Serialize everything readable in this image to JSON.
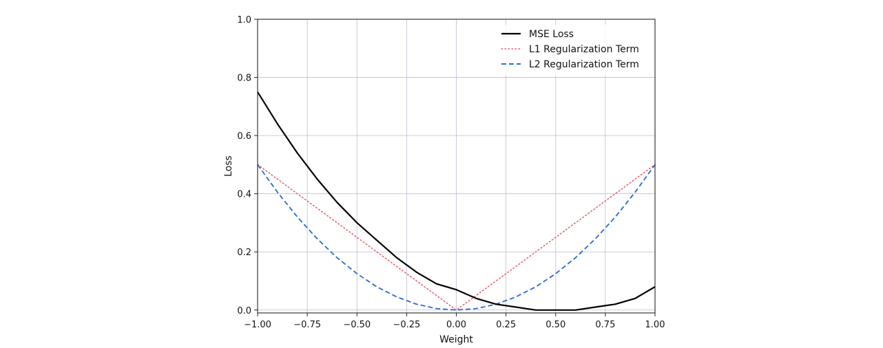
{
  "chart_data": {
    "type": "line",
    "xlabel": "Weight",
    "ylabel": "Loss",
    "xlim": [
      -1.0,
      1.0
    ],
    "ylim": [
      -0.01,
      1.0
    ],
    "grid": true,
    "legend_position": "top-right",
    "x_ticks": [
      -1.0,
      -0.75,
      -0.5,
      -0.25,
      0.0,
      0.25,
      0.5,
      0.75,
      1.0
    ],
    "x_tick_labels": [
      "−1.00",
      "−0.75",
      "−0.50",
      "−0.25",
      "0.00",
      "0.25",
      "0.50",
      "0.75",
      "1.00"
    ],
    "y_ticks": [
      0.0,
      0.2,
      0.4,
      0.6,
      0.8,
      1.0
    ],
    "y_tick_labels": [
      "0.0",
      "0.2",
      "0.4",
      "0.6",
      "0.8",
      "1.0"
    ],
    "x": [
      -1.0,
      -0.9,
      -0.8,
      -0.7,
      -0.6,
      -0.5,
      -0.4,
      -0.3,
      -0.2,
      -0.1,
      0.0,
      0.1,
      0.2,
      0.3,
      0.4,
      0.5,
      0.6,
      0.7,
      0.8,
      0.9,
      1.0
    ],
    "series": [
      {
        "name": "MSE Loss",
        "color": "#000000",
        "style": "solid",
        "values": [
          0.75,
          0.64,
          0.54,
          0.45,
          0.37,
          0.3,
          0.24,
          0.18,
          0.13,
          0.09,
          0.07,
          0.04,
          0.02,
          0.01,
          0.0,
          0.0,
          0.0,
          0.01,
          0.02,
          0.04,
          0.08
        ]
      },
      {
        "name": "L1 Regularization Term",
        "color": "#e8616f",
        "style": "dotted",
        "values": [
          0.5,
          0.45,
          0.4,
          0.35,
          0.3,
          0.25,
          0.2,
          0.15,
          0.1,
          0.05,
          0.0,
          0.05,
          0.1,
          0.15,
          0.2,
          0.25,
          0.3,
          0.35,
          0.4,
          0.45,
          0.5
        ]
      },
      {
        "name": "L2 Regularization Term",
        "color": "#2f6fd6",
        "style": "dashed",
        "values": [
          0.5,
          0.405,
          0.32,
          0.245,
          0.18,
          0.125,
          0.08,
          0.045,
          0.02,
          0.005,
          0.0,
          0.005,
          0.02,
          0.045,
          0.08,
          0.125,
          0.18,
          0.245,
          0.32,
          0.405,
          0.5
        ]
      }
    ]
  }
}
